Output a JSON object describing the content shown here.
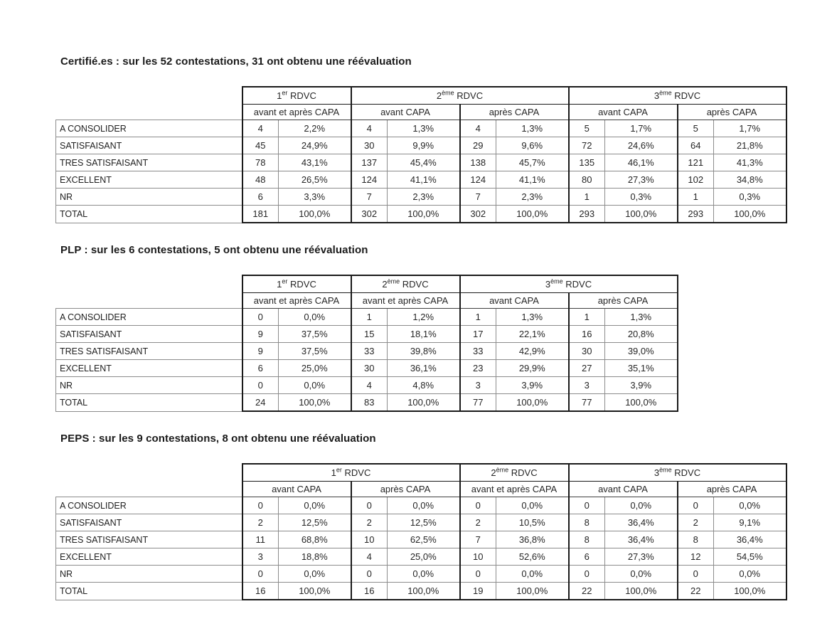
{
  "page": {
    "background": "#ffffff",
    "text_color": "#262626",
    "thick_border_color": "#1a1a1a",
    "thin_border_color": "#8c8c8c"
  },
  "row_labels": [
    "A CONSOLIDER",
    "SATISFAISANT",
    "TRES SATISFAISANT",
    "EXCELLENT",
    "NR",
    "TOTAL"
  ],
  "sections": [
    {
      "title": "Certifié.es : sur les 52 contestations, 31 ont obtenu une réévaluation",
      "table": {
        "groups": [
          {
            "base": "1",
            "sup": "er",
            "rest": " RDVC",
            "subs": [
              "avant et après CAPA"
            ]
          },
          {
            "base": "2",
            "sup": "ème",
            "rest": " RDVC",
            "subs": [
              "avant CAPA",
              "après CAPA"
            ]
          },
          {
            "base": "3",
            "sup": "ème",
            "rest": " RDVC",
            "subs": [
              "avant CAPA",
              "après CAPA"
            ]
          }
        ],
        "rows": [
          {
            "label": "A CONSOLIDER",
            "cells": [
              [
                "4",
                "2,2%"
              ],
              [
                "4",
                "1,3%"
              ],
              [
                "4",
                "1,3%"
              ],
              [
                "5",
                "1,7%"
              ],
              [
                "5",
                "1,7%"
              ]
            ]
          },
          {
            "label": "SATISFAISANT",
            "cells": [
              [
                "45",
                "24,9%"
              ],
              [
                "30",
                "9,9%"
              ],
              [
                "29",
                "9,6%"
              ],
              [
                "72",
                "24,6%"
              ],
              [
                "64",
                "21,8%"
              ]
            ]
          },
          {
            "label": "TRES SATISFAISANT",
            "cells": [
              [
                "78",
                "43,1%"
              ],
              [
                "137",
                "45,4%"
              ],
              [
                "138",
                "45,7%"
              ],
              [
                "135",
                "46,1%"
              ],
              [
                "121",
                "41,3%"
              ]
            ]
          },
          {
            "label": "EXCELLENT",
            "cells": [
              [
                "48",
                "26,5%"
              ],
              [
                "124",
                "41,1%"
              ],
              [
                "124",
                "41,1%"
              ],
              [
                "80",
                "27,3%"
              ],
              [
                "102",
                "34,8%"
              ]
            ]
          },
          {
            "label": "NR",
            "cells": [
              [
                "6",
                "3,3%"
              ],
              [
                "7",
                "2,3%"
              ],
              [
                "7",
                "2,3%"
              ],
              [
                "1",
                "0,3%"
              ],
              [
                "1",
                "0,3%"
              ]
            ]
          },
          {
            "label": "TOTAL",
            "cells": [
              [
                "181",
                "100,0%"
              ],
              [
                "302",
                "100,0%"
              ],
              [
                "302",
                "100,0%"
              ],
              [
                "293",
                "100,0%"
              ],
              [
                "293",
                "100,0%"
              ]
            ]
          }
        ]
      }
    },
    {
      "title": "PLP : sur les 6 contestations, 5 ont obtenu une réévaluation",
      "table": {
        "groups": [
          {
            "base": "1",
            "sup": "er",
            "rest": " RDVC",
            "subs": [
              "avant et après CAPA"
            ]
          },
          {
            "base": "2",
            "sup": "ème",
            "rest": " RDVC",
            "subs": [
              "avant et après CAPA"
            ]
          },
          {
            "base": "3",
            "sup": "ème",
            "rest": " RDVC",
            "subs": [
              "avant CAPA",
              "après CAPA"
            ]
          }
        ],
        "rows": [
          {
            "label": "A CONSOLIDER",
            "cells": [
              [
                "0",
                "0,0%"
              ],
              [
                "1",
                "1,2%"
              ],
              [
                "1",
                "1,3%"
              ],
              [
                "1",
                "1,3%"
              ]
            ]
          },
          {
            "label": "SATISFAISANT",
            "cells": [
              [
                "9",
                "37,5%"
              ],
              [
                "15",
                "18,1%"
              ],
              [
                "17",
                "22,1%"
              ],
              [
                "16",
                "20,8%"
              ]
            ]
          },
          {
            "label": "TRES SATISFAISANT",
            "cells": [
              [
                "9",
                "37,5%"
              ],
              [
                "33",
                "39,8%"
              ],
              [
                "33",
                "42,9%"
              ],
              [
                "30",
                "39,0%"
              ]
            ]
          },
          {
            "label": "EXCELLENT",
            "cells": [
              [
                "6",
                "25,0%"
              ],
              [
                "30",
                "36,1%"
              ],
              [
                "23",
                "29,9%"
              ],
              [
                "27",
                "35,1%"
              ]
            ]
          },
          {
            "label": "NR",
            "cells": [
              [
                "0",
                "0,0%"
              ],
              [
                "4",
                "4,8%"
              ],
              [
                "3",
                "3,9%"
              ],
              [
                "3",
                "3,9%"
              ]
            ]
          },
          {
            "label": "TOTAL",
            "cells": [
              [
                "24",
                "100,0%"
              ],
              [
                "83",
                "100,0%"
              ],
              [
                "77",
                "100,0%"
              ],
              [
                "77",
                "100,0%"
              ]
            ]
          }
        ]
      }
    },
    {
      "title": "PEPS : sur les 9 contestations, 8 ont obtenu une réévaluation",
      "table": {
        "groups": [
          {
            "base": "1",
            "sup": "er",
            "rest": " RDVC",
            "subs": [
              "avant CAPA",
              "après CAPA"
            ]
          },
          {
            "base": "2",
            "sup": "ème",
            "rest": " RDVC",
            "subs": [
              "avant et après CAPA"
            ]
          },
          {
            "base": "3",
            "sup": "ème",
            "rest": " RDVC",
            "subs": [
              "avant CAPA",
              "après CAPA"
            ]
          }
        ],
        "rows": [
          {
            "label": "A CONSOLIDER",
            "cells": [
              [
                "0",
                "0,0%"
              ],
              [
                "0",
                "0,0%"
              ],
              [
                "0",
                "0,0%"
              ],
              [
                "0",
                "0,0%"
              ],
              [
                "0",
                "0,0%"
              ]
            ]
          },
          {
            "label": "SATISFAISANT",
            "cells": [
              [
                "2",
                "12,5%"
              ],
              [
                "2",
                "12,5%"
              ],
              [
                "2",
                "10,5%"
              ],
              [
                "8",
                "36,4%"
              ],
              [
                "2",
                "9,1%"
              ]
            ]
          },
          {
            "label": "TRES SATISFAISANT",
            "cells": [
              [
                "11",
                "68,8%"
              ],
              [
                "10",
                "62,5%"
              ],
              [
                "7",
                "36,8%"
              ],
              [
                "8",
                "36,4%"
              ],
              [
                "8",
                "36,4%"
              ]
            ]
          },
          {
            "label": "EXCELLENT",
            "cells": [
              [
                "3",
                "18,8%"
              ],
              [
                "4",
                "25,0%"
              ],
              [
                "10",
                "52,6%"
              ],
              [
                "6",
                "27,3%"
              ],
              [
                "12",
                "54,5%"
              ]
            ]
          },
          {
            "label": "NR",
            "cells": [
              [
                "0",
                "0,0%"
              ],
              [
                "0",
                "0,0%"
              ],
              [
                "0",
                "0,0%"
              ],
              [
                "0",
                "0,0%"
              ],
              [
                "0",
                "0,0%"
              ]
            ]
          },
          {
            "label": "TOTAL",
            "cells": [
              [
                "16",
                "100,0%"
              ],
              [
                "16",
                "100,0%"
              ],
              [
                "19",
                "100,0%"
              ],
              [
                "22",
                "100,0%"
              ],
              [
                "22",
                "100,0%"
              ]
            ]
          }
        ]
      }
    }
  ]
}
